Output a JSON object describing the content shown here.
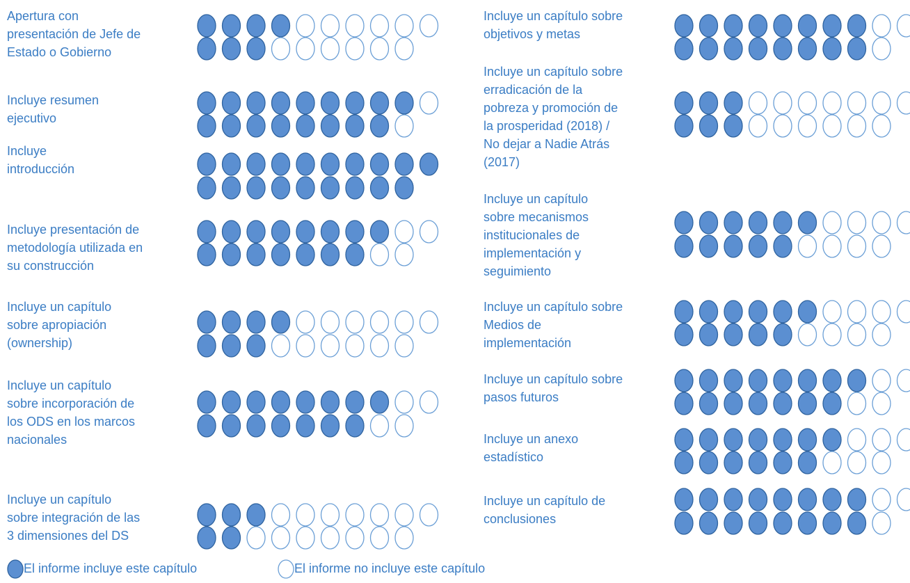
{
  "chart_data": {
    "type": "pictograph",
    "filled_color": "#5b8fd1",
    "empty_color": "#ffffff",
    "legend": {
      "filled": "El informe incluye este capítulo",
      "empty": "El informe no incluye este capítulo"
    },
    "items": [
      {
        "label": "Apertura con\npresentación de Jefe de\nEstado o Gobierno",
        "rows": [
          {
            "filled": 4,
            "total": 10
          },
          {
            "filled": 3,
            "total": 9
          }
        ]
      },
      {
        "label": "Incluye resumen\nejecutivo",
        "rows": [
          {
            "filled": 9,
            "total": 10
          },
          {
            "filled": 8,
            "total": 9
          }
        ]
      },
      {
        "label": "Incluye\nintroducción",
        "rows": [
          {
            "filled": 10,
            "total": 10
          },
          {
            "filled": 9,
            "total": 9
          }
        ]
      },
      {
        "label": "Incluye presentación de\nmetodología utilizada en\nsu construcción",
        "rows": [
          {
            "filled": 8,
            "total": 10
          },
          {
            "filled": 7,
            "total": 9
          }
        ]
      },
      {
        "label": "Incluye un capítulo\nsobre apropiación\n(ownership)",
        "rows": [
          {
            "filled": 4,
            "total": 10
          },
          {
            "filled": 3,
            "total": 9
          }
        ]
      },
      {
        "label": "Incluye un capítulo\nsobre incorporación de\nlos ODS en los marcos\nnacionales",
        "rows": [
          {
            "filled": 8,
            "total": 10
          },
          {
            "filled": 7,
            "total": 9
          }
        ]
      },
      {
        "label": "Incluye un capítulo\nsobre integración de las\n3 dimensiones del DS",
        "rows": [
          {
            "filled": 3,
            "total": 10
          },
          {
            "filled": 2,
            "total": 9
          }
        ]
      },
      {
        "label": "Incluye un capítulo sobre\nobjetivos y metas",
        "rows": [
          {
            "filled": 8,
            "total": 10
          },
          {
            "filled": 8,
            "total": 9
          }
        ]
      },
      {
        "label": "Incluye un capítulo sobre\nerradicación de la\npobreza y promoción de\nla prosperidad (2018) /\nNo dejar a Nadie Atrás\n(2017)",
        "rows": [
          {
            "filled": 3,
            "total": 10
          },
          {
            "filled": 3,
            "total": 9
          }
        ]
      },
      {
        "label": "Incluye un capítulo\nsobre mecanismos\ninstitucionales de\nimplementación y\nseguimiento",
        "rows": [
          {
            "filled": 6,
            "total": 10
          },
          {
            "filled": 5,
            "total": 9
          }
        ]
      },
      {
        "label": "Incluye un capítulo sobre\nMedios de\nimplementación",
        "rows": [
          {
            "filled": 6,
            "total": 10
          },
          {
            "filled": 5,
            "total": 9
          }
        ]
      },
      {
        "label": "Incluye un capítulo sobre\npasos futuros",
        "rows": [
          {
            "filled": 8,
            "total": 10
          },
          {
            "filled": 7,
            "total": 9
          }
        ]
      },
      {
        "label": "Incluye un anexo\nestadístico",
        "rows": [
          {
            "filled": 7,
            "total": 10
          },
          {
            "filled": 6,
            "total": 9
          }
        ]
      },
      {
        "label": "Incluye un capítulo de\nconclusiones",
        "rows": [
          {
            "filled": 8,
            "total": 10
          },
          {
            "filled": 8,
            "total": 9
          }
        ]
      }
    ]
  }
}
